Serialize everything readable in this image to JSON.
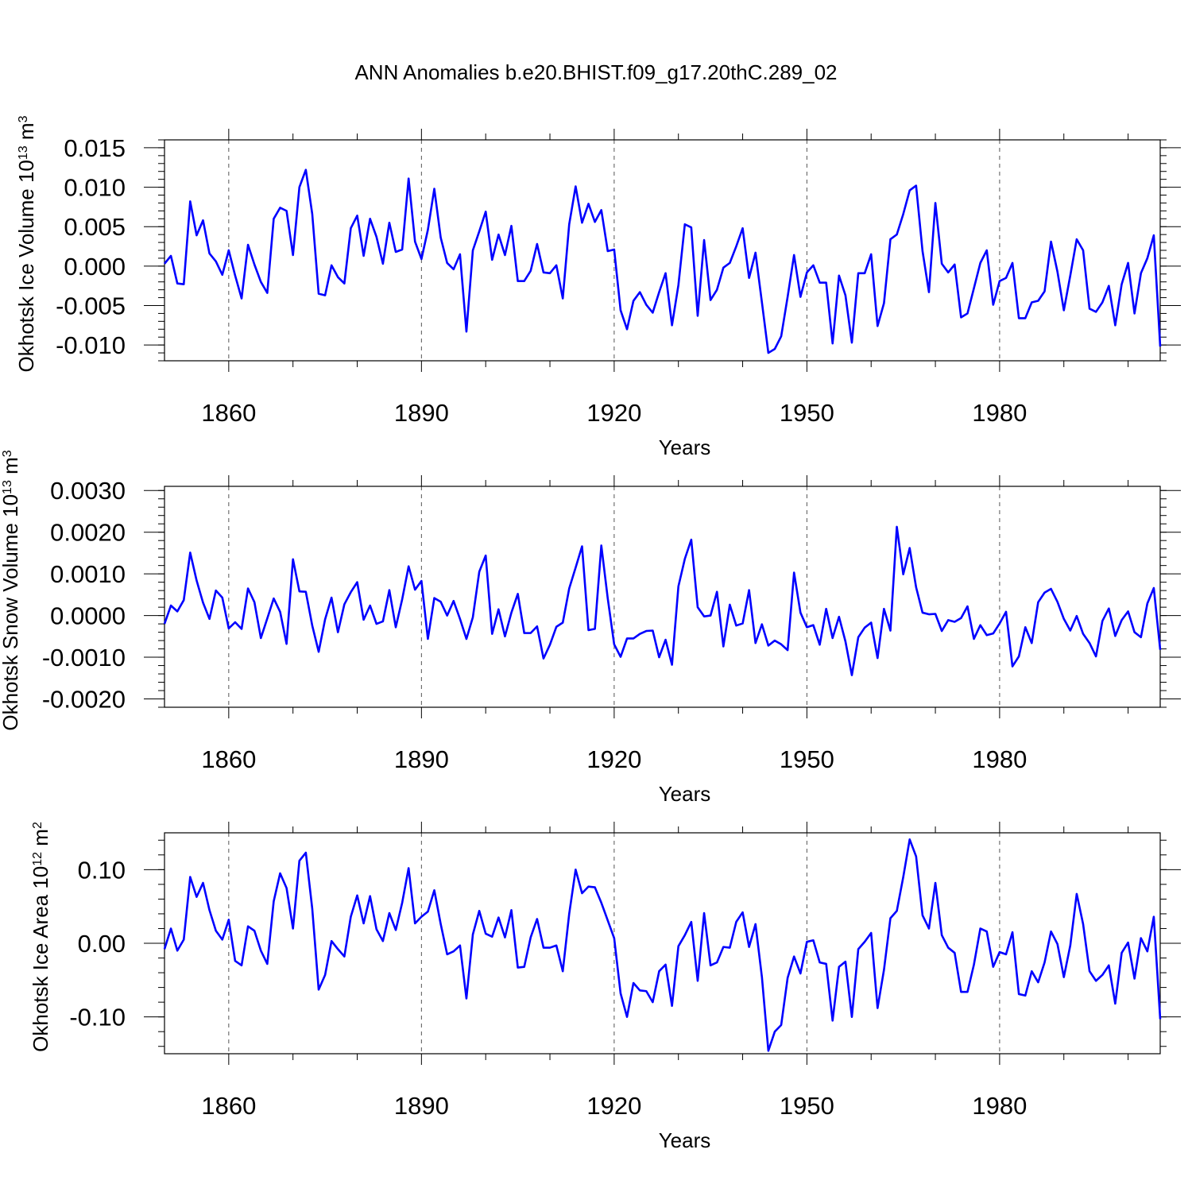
{
  "chart_data": [
    {
      "type": "line",
      "title": "ANN Anomalies b.e20.BHIST.f09_g17.20thC.289_02",
      "ylabel": "Okhotsk Ice Volume",
      "yunit": "10^13 m^3",
      "xlabel": "Years",
      "xlim": [
        1850,
        2005
      ],
      "ylim": [
        -0.012,
        0.016
      ],
      "yticks": [
        0.015,
        0.01,
        0.005,
        0.0,
        -0.005,
        -0.01
      ],
      "ytick_labels": [
        "0.015",
        "0.010",
        "0.005",
        "0.000",
        "-0.005",
        "-0.010"
      ],
      "xticks": [
        1860,
        1890,
        1920,
        1950,
        1980
      ],
      "xtick_labels": [
        "1860",
        "1890",
        "1920",
        "1950",
        "1980"
      ],
      "x_start": 1850,
      "values": [
        0.0003,
        0.0013,
        -0.0022,
        -0.0023,
        0.0082,
        0.0039,
        0.0058,
        0.0016,
        0.0006,
        -0.0011,
        0.002,
        -0.0012,
        -0.0041,
        0.0027,
        0.0002,
        -0.002,
        -0.0034,
        0.006,
        0.0074,
        0.007,
        0.0014,
        0.01,
        0.0122,
        0.0066,
        -0.0035,
        -0.0037,
        0.0001,
        -0.0014,
        -0.0022,
        0.0048,
        0.0064,
        0.0013,
        0.006,
        0.0037,
        0.0003,
        0.0055,
        0.0018,
        0.0021,
        0.0111,
        0.0031,
        0.0009,
        0.0046,
        0.0098,
        0.0036,
        0.0004,
        -0.0004,
        0.0015,
        -0.0083,
        0.002,
        0.0044,
        0.0069,
        0.0008,
        0.004,
        0.0014,
        0.0051,
        -0.0019,
        -0.0019,
        -0.0006,
        0.0028,
        -0.0008,
        -0.0009,
        0.0001,
        -0.0041,
        0.0053,
        0.0101,
        0.0055,
        0.0079,
        0.0056,
        0.0071,
        0.0019,
        0.0021,
        -0.0056,
        -0.008,
        -0.0044,
        -0.0033,
        -0.0049,
        -0.0059,
        -0.0033,
        -0.0009,
        -0.0075,
        -0.0024,
        0.0053,
        0.0049,
        -0.0063,
        0.0033,
        -0.0043,
        -0.003,
        -0.0002,
        0.0004,
        0.0025,
        0.0048,
        -0.0015,
        0.0017,
        -0.0046,
        -0.011,
        -0.0105,
        -0.0089,
        -0.0039,
        0.0014,
        -0.0039,
        -0.0008,
        0.0001,
        -0.0021,
        -0.0021,
        -0.0098,
        -0.0012,
        -0.0037,
        -0.0097,
        -0.0009,
        -0.0009,
        0.0015,
        -0.0076,
        -0.0047,
        0.0034,
        0.004,
        0.0066,
        0.0096,
        0.0102,
        0.0019,
        -0.0033,
        0.008,
        0.0003,
        -0.0008,
        0.0002,
        -0.0065,
        -0.006,
        -0.0028,
        0.0004,
        0.002,
        -0.0049,
        -0.0019,
        -0.0015,
        0.0004,
        -0.0066,
        -0.0066,
        -0.0046,
        -0.0044,
        -0.0032,
        0.0031,
        -0.0007,
        -0.0056,
        -0.0012,
        0.0034,
        0.002,
        -0.0054,
        -0.0058,
        -0.0046,
        -0.0025,
        -0.0075,
        -0.0023,
        0.0004,
        -0.006,
        -0.0009,
        0.001,
        0.0039,
        -0.0102
      ]
    },
    {
      "type": "line",
      "ylabel": "Okhotsk Snow Volume",
      "yunit": "10^13 m^3",
      "xlabel": "Years",
      "xlim": [
        1850,
        2005
      ],
      "ylim": [
        -0.0022,
        0.0031
      ],
      "yticks": [
        0.003,
        0.002,
        0.001,
        0.0,
        -0.001,
        -0.002
      ],
      "ytick_labels": [
        "0.0030",
        "0.0020",
        "0.0010",
        "0.0000",
        "-0.0010",
        "-0.0020"
      ],
      "xticks": [
        1860,
        1890,
        1920,
        1950,
        1980
      ],
      "xtick_labels": [
        "1860",
        "1890",
        "1920",
        "1950",
        "1980"
      ],
      "x_start": 1850,
      "values": [
        -0.0002,
        0.00024,
        0.0001,
        0.00037,
        0.00151,
        0.00084,
        0.00031,
        -8e-05,
        0.0006,
        0.00043,
        -0.00031,
        -0.00016,
        -0.00032,
        0.00065,
        0.00032,
        -0.00054,
        -7e-05,
        0.00041,
        9e-05,
        -0.00068,
        0.00135,
        0.00058,
        0.00057,
        -0.00024,
        -0.00087,
        -9e-05,
        0.00043,
        -0.0004,
        0.00027,
        0.00056,
        0.0008,
        -0.0001,
        0.00024,
        -0.0002,
        -0.00014,
        0.00061,
        -0.00028,
        0.00039,
        0.00118,
        0.00062,
        0.00083,
        -0.00056,
        0.00042,
        0.00033,
        0.0,
        0.00035,
        -8e-05,
        -0.00056,
        -4e-05,
        0.00105,
        0.00144,
        -0.00044,
        0.00015,
        -0.0005,
        7e-05,
        0.00052,
        -0.00042,
        -0.00042,
        -0.00026,
        -0.00103,
        -0.0007,
        -0.00027,
        -0.00017,
        0.00065,
        0.00115,
        0.00166,
        -0.00035,
        -0.00032,
        0.00168,
        0.00041,
        -0.00069,
        -0.00099,
        -0.00055,
        -0.00055,
        -0.00044,
        -0.00037,
        -0.00036,
        -0.001,
        -0.00058,
        -0.00118,
        0.0007,
        0.00136,
        0.00182,
        0.0002,
        -2e-05,
        0.0,
        0.00057,
        -0.00074,
        0.00026,
        -0.00024,
        -0.00019,
        0.00061,
        -0.00066,
        -0.00021,
        -0.00072,
        -0.0006,
        -0.00069,
        -0.00083,
        0.00103,
        7e-05,
        -0.00028,
        -0.00023,
        -0.0007,
        0.00016,
        -0.00054,
        -3e-05,
        -0.00062,
        -0.00143,
        -0.00052,
        -0.00029,
        -0.00017,
        -0.00102,
        0.00016,
        -0.00036,
        0.00213,
        0.00099,
        0.00162,
        0.00068,
        7e-05,
        3e-05,
        4e-05,
        -0.00037,
        -0.00011,
        -0.00015,
        -6e-05,
        0.00022,
        -0.00056,
        -0.00023,
        -0.00047,
        -0.00043,
        -0.00019,
        9e-05,
        -0.00122,
        -0.00098,
        -0.00028,
        -0.00066,
        0.00032,
        0.00055,
        0.00064,
        0.00033,
        -8e-05,
        -0.00036,
        -1e-05,
        -0.00044,
        -0.00066,
        -0.00098,
        -0.00013,
        0.00017,
        -0.00049,
        -0.00011,
        0.0001,
        -0.0004,
        -0.00052,
        0.00029,
        0.00066,
        -0.00082
      ]
    },
    {
      "type": "line",
      "ylabel": "Okhotsk Ice Area",
      "yunit": "10^12 m^2",
      "xlabel": "Years",
      "xlim": [
        1850,
        2005
      ],
      "ylim": [
        -0.15,
        0.15
      ],
      "yticks": [
        0.1,
        0.0,
        -0.1
      ],
      "ytick_labels": [
        "0.10",
        "0.00",
        "-0.10"
      ],
      "xticks": [
        1860,
        1890,
        1920,
        1950,
        1980
      ],
      "xtick_labels": [
        "1860",
        "1890",
        "1920",
        "1950",
        "1980"
      ],
      "x_start": 1850,
      "values": [
        -0.008,
        0.02,
        -0.01,
        0.005,
        0.09,
        0.063,
        0.082,
        0.045,
        0.017,
        0.005,
        0.032,
        -0.024,
        -0.03,
        0.023,
        0.017,
        -0.01,
        -0.028,
        0.057,
        0.095,
        0.075,
        0.02,
        0.112,
        0.123,
        0.047,
        -0.063,
        -0.043,
        0.003,
        -0.008,
        -0.018,
        0.036,
        0.065,
        0.027,
        0.064,
        0.019,
        0.003,
        0.041,
        0.018,
        0.055,
        0.102,
        0.027,
        0.036,
        0.043,
        0.072,
        0.026,
        -0.015,
        -0.011,
        -0.003,
        -0.075,
        0.012,
        0.044,
        0.013,
        0.009,
        0.035,
        0.008,
        0.045,
        -0.033,
        -0.032,
        0.008,
        0.033,
        -0.006,
        -0.006,
        -0.003,
        -0.038,
        0.04,
        0.1,
        0.068,
        0.077,
        0.076,
        0.055,
        0.031,
        0.007,
        -0.068,
        -0.1,
        -0.054,
        -0.064,
        -0.065,
        -0.08,
        -0.038,
        -0.029,
        -0.085,
        -0.004,
        0.011,
        0.029,
        -0.051,
        0.041,
        -0.03,
        -0.026,
        -0.005,
        -0.006,
        0.029,
        0.042,
        -0.005,
        0.026,
        -0.046,
        -0.146,
        -0.12,
        -0.111,
        -0.047,
        -0.018,
        -0.041,
        0.002,
        0.004,
        -0.026,
        -0.028,
        -0.105,
        -0.032,
        -0.025,
        -0.1,
        -0.008,
        0.002,
        0.014,
        -0.088,
        -0.036,
        0.034,
        0.044,
        0.09,
        0.141,
        0.118,
        0.038,
        0.02,
        0.082,
        0.011,
        -0.006,
        -0.013,
        -0.066,
        -0.066,
        -0.029,
        0.02,
        0.016,
        -0.032,
        -0.012,
        -0.015,
        0.015,
        -0.069,
        -0.071,
        -0.038,
        -0.053,
        -0.026,
        0.016,
        -0.001,
        -0.046,
        -0.003,
        0.067,
        0.026,
        -0.038,
        -0.051,
        -0.043,
        -0.03,
        -0.082,
        -0.013,
        0.001,
        -0.048,
        0.007,
        -0.011,
        0.036,
        -0.103
      ]
    }
  ]
}
